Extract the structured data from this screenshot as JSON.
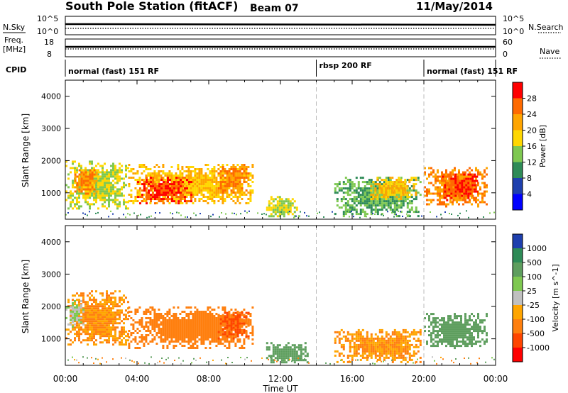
{
  "header": {
    "station": "South Pole Station (fitACF)",
    "beam": "Beam 07",
    "date": "11/May/2014"
  },
  "top_panels": {
    "nsky": {
      "label": "N.Sky",
      "ticks_left": [
        "10^5",
        "10^0"
      ],
      "ticks_right": [
        "10^5",
        "10^0"
      ],
      "right_label": "N.Search"
    },
    "freq": {
      "label_line1": "Freq.",
      "label_line2": "[MHz]",
      "ticks_left": [
        "18",
        "8"
      ],
      "ticks_right": [
        "60",
        "0"
      ],
      "right_label": "Nave"
    },
    "cpid": {
      "label": "CPID",
      "segments": [
        {
          "text": "normal (fast) 151 RF",
          "start_h": 0,
          "end_h": 14
        },
        {
          "text": "rbsp 200 RF",
          "start_h": 14,
          "end_h": 20
        },
        {
          "text": "normal (fast) 151 RF",
          "start_h": 20,
          "end_h": 24
        }
      ]
    }
  },
  "axes": {
    "y_label": "Slant Range [km]",
    "y_ticks": [
      "1000",
      "2000",
      "3000",
      "4000"
    ],
    "x_ticks": [
      "00:00",
      "04:00",
      "08:00",
      "12:00",
      "16:00",
      "20:00",
      "00:00"
    ],
    "x_label": "Time UT"
  },
  "power_colorbar": {
    "label": "Power [dB]",
    "ticks": [
      "28",
      "24",
      "20",
      "16",
      "12",
      "8",
      "4"
    ],
    "colors": [
      "#ff0000",
      "#ff6a00",
      "#ffa500",
      "#ffd700",
      "#7ec850",
      "#2e8b57",
      "#1e3fae",
      "#0000ff"
    ]
  },
  "velocity_colorbar": {
    "label": "Velocity [m s^-1]",
    "ticks": [
      "1000",
      "500",
      "100",
      "25",
      "-25",
      "-100",
      "-500",
      "-1000"
    ],
    "colors": [
      "#1e3fae",
      "#2e8b57",
      "#5e9e5e",
      "#7ec850",
      "#c0c0c0",
      "#ffa500",
      "#ff7f0e",
      "#ff4500",
      "#ff0000"
    ]
  },
  "chart_data": {
    "type": "heatmap",
    "title": "South Pole Station (fitACF) Beam 07 11/May/2014",
    "xlabel": "Time UT",
    "ylabel": "Slant Range [km]",
    "xlim": [
      0,
      24
    ],
    "ylim": [
      180,
      4500
    ],
    "mode_changes_h": [
      14,
      20
    ],
    "panels": [
      {
        "name": "Power [dB]",
        "regions": [
          {
            "t_start": 0.0,
            "t_end": 3.5,
            "r_low": 500,
            "r_high": 2000,
            "value": 16
          },
          {
            "t_start": 0.5,
            "t_end": 1.8,
            "r_low": 1000,
            "r_high": 1800,
            "value": 24
          },
          {
            "t_start": 3.5,
            "t_end": 10.5,
            "r_low": 700,
            "r_high": 1900,
            "value": 20
          },
          {
            "t_start": 4.0,
            "t_end": 7.0,
            "r_low": 700,
            "r_high": 1500,
            "value": 28
          },
          {
            "t_start": 8.5,
            "t_end": 10.2,
            "r_low": 1000,
            "r_high": 1900,
            "value": 24
          },
          {
            "t_start": 11.2,
            "t_end": 13.0,
            "r_low": 280,
            "r_high": 900,
            "value": 16
          },
          {
            "t_start": 15.0,
            "t_end": 19.8,
            "r_low": 300,
            "r_high": 1500,
            "value": 12
          },
          {
            "t_start": 17.0,
            "t_end": 19.5,
            "r_low": 800,
            "r_high": 1500,
            "value": 20
          },
          {
            "t_start": 20.0,
            "t_end": 23.5,
            "r_low": 600,
            "r_high": 1800,
            "value": 24
          },
          {
            "t_start": 21.0,
            "t_end": 23.0,
            "r_low": 800,
            "r_high": 1600,
            "value": 28
          }
        ]
      },
      {
        "name": "Velocity [m s^-1]",
        "regions": [
          {
            "t_start": 0.0,
            "t_end": 3.5,
            "r_low": 800,
            "r_high": 2500,
            "value": -100
          },
          {
            "t_start": 0.0,
            "t_end": 1.0,
            "r_low": 1400,
            "r_high": 2200,
            "value": 25
          },
          {
            "t_start": 3.5,
            "t_end": 10.5,
            "r_low": 700,
            "r_high": 2000,
            "value": -300
          },
          {
            "t_start": 8.5,
            "t_end": 10.2,
            "r_low": 1000,
            "r_high": 1900,
            "value": -500
          },
          {
            "t_start": 11.2,
            "t_end": 13.5,
            "r_low": 280,
            "r_high": 900,
            "value": 300
          },
          {
            "t_start": 15.0,
            "t_end": 19.8,
            "r_low": 300,
            "r_high": 1300,
            "value": -100
          },
          {
            "t_start": 20.0,
            "t_end": 23.5,
            "r_low": 700,
            "r_high": 1800,
            "value": 300
          }
        ]
      }
    ]
  }
}
